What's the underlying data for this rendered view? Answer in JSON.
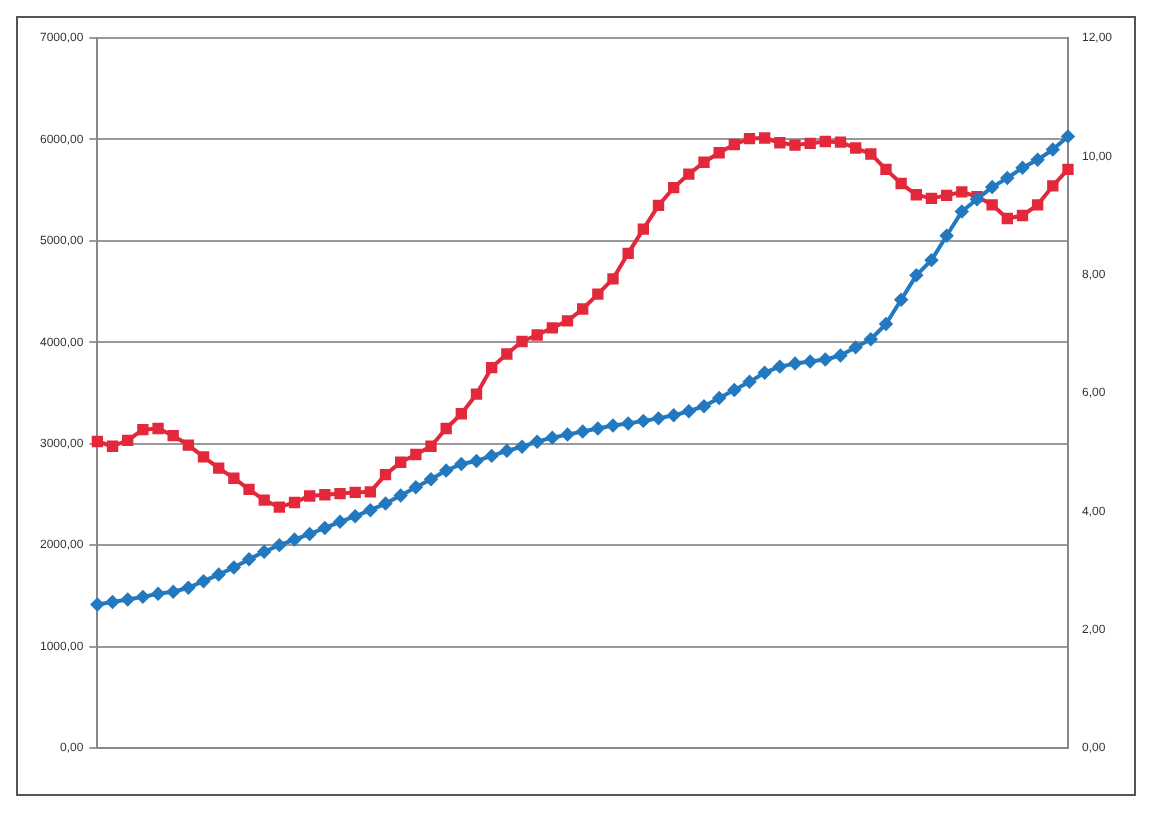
{
  "chart_data": {
    "type": "line",
    "categories": [
      null,
      null,
      null,
      null,
      null,
      null,
      null,
      null,
      null,
      null,
      null,
      null,
      null,
      null,
      null,
      null,
      null,
      null,
      null,
      null,
      null,
      null,
      null,
      null,
      null,
      null,
      null,
      null,
      null,
      null,
      null,
      null,
      null,
      null,
      null,
      null,
      null,
      null,
      null,
      null,
      null,
      null,
      null,
      null,
      null,
      null,
      null,
      null,
      null,
      null,
      null,
      null,
      null,
      null,
      null,
      null,
      null,
      null,
      null,
      null,
      null,
      null,
      null,
      null,
      null
    ],
    "series": [
      {
        "color": "#2379c0",
        "marker": "diamond",
        "values": [
          1415,
          1440,
          1465,
          1490,
          1520,
          1540,
          1580,
          1645,
          1710,
          1780,
          1860,
          1935,
          2000,
          2055,
          2110,
          2170,
          2230,
          2285,
          2345,
          2410,
          2490,
          2570,
          2650,
          2735,
          2800,
          2830,
          2880,
          2930,
          2970,
          3020,
          3060,
          3090,
          3120,
          3150,
          3180,
          3200,
          3225,
          3250,
          3280,
          3320,
          3370,
          3450,
          3530,
          3610,
          3700,
          3760,
          3790,
          3810,
          3830,
          3870,
          3950,
          4030,
          4180,
          4420,
          4660,
          4810,
          5050,
          5290,
          5410,
          5530,
          5620,
          5720,
          5800,
          5900,
          6030
        ]
      },
      {
        "color": "#e4283c",
        "marker": "square",
        "axis": "y2",
        "values": [
          5.18,
          5.1,
          5.2,
          5.38,
          5.4,
          5.28,
          5.12,
          4.92,
          4.73,
          4.56,
          4.37,
          4.19,
          4.07,
          4.15,
          4.26,
          4.28,
          4.3,
          4.32,
          4.33,
          4.62,
          4.83,
          4.96,
          5.1,
          5.4,
          5.65,
          5.98,
          6.43,
          6.66,
          6.87,
          6.98,
          7.1,
          7.22,
          7.42,
          7.67,
          7.93,
          8.36,
          8.77,
          9.17,
          9.47,
          9.7,
          9.9,
          10.06,
          10.2,
          10.3,
          10.31,
          10.23,
          10.19,
          10.22,
          10.25,
          10.24,
          10.14,
          10.04,
          9.78,
          9.54,
          9.35,
          9.29,
          9.34,
          9.4,
          9.32,
          9.18,
          8.95,
          9.0,
          9.18,
          9.5,
          9.78
        ]
      }
    ],
    "ylim": [
      0,
      7000
    ],
    "yticks": [
      {
        "value": 0,
        "label": "0,00"
      },
      {
        "value": 1000,
        "label": "1000,00"
      },
      {
        "value": 2000,
        "label": "2000,00"
      },
      {
        "value": 3000,
        "label": "3000,00"
      },
      {
        "value": 4000,
        "label": "4000,00"
      },
      {
        "value": 5000,
        "label": "5000,00"
      },
      {
        "value": 6000,
        "label": "6000,00"
      },
      {
        "value": 7000,
        "label": "7000,00"
      }
    ],
    "y2lim": [
      0,
      12
    ],
    "y2ticks": [
      {
        "value": 0,
        "label": "0,00"
      },
      {
        "value": 2,
        "label": "2,00"
      },
      {
        "value": 4,
        "label": "4,00"
      },
      {
        "value": 6,
        "label": "6,00"
      },
      {
        "value": 8,
        "label": "8,00"
      },
      {
        "value": 10,
        "label": "10,00"
      },
      {
        "value": 12,
        "label": "12,00"
      }
    ],
    "grid": "y"
  }
}
